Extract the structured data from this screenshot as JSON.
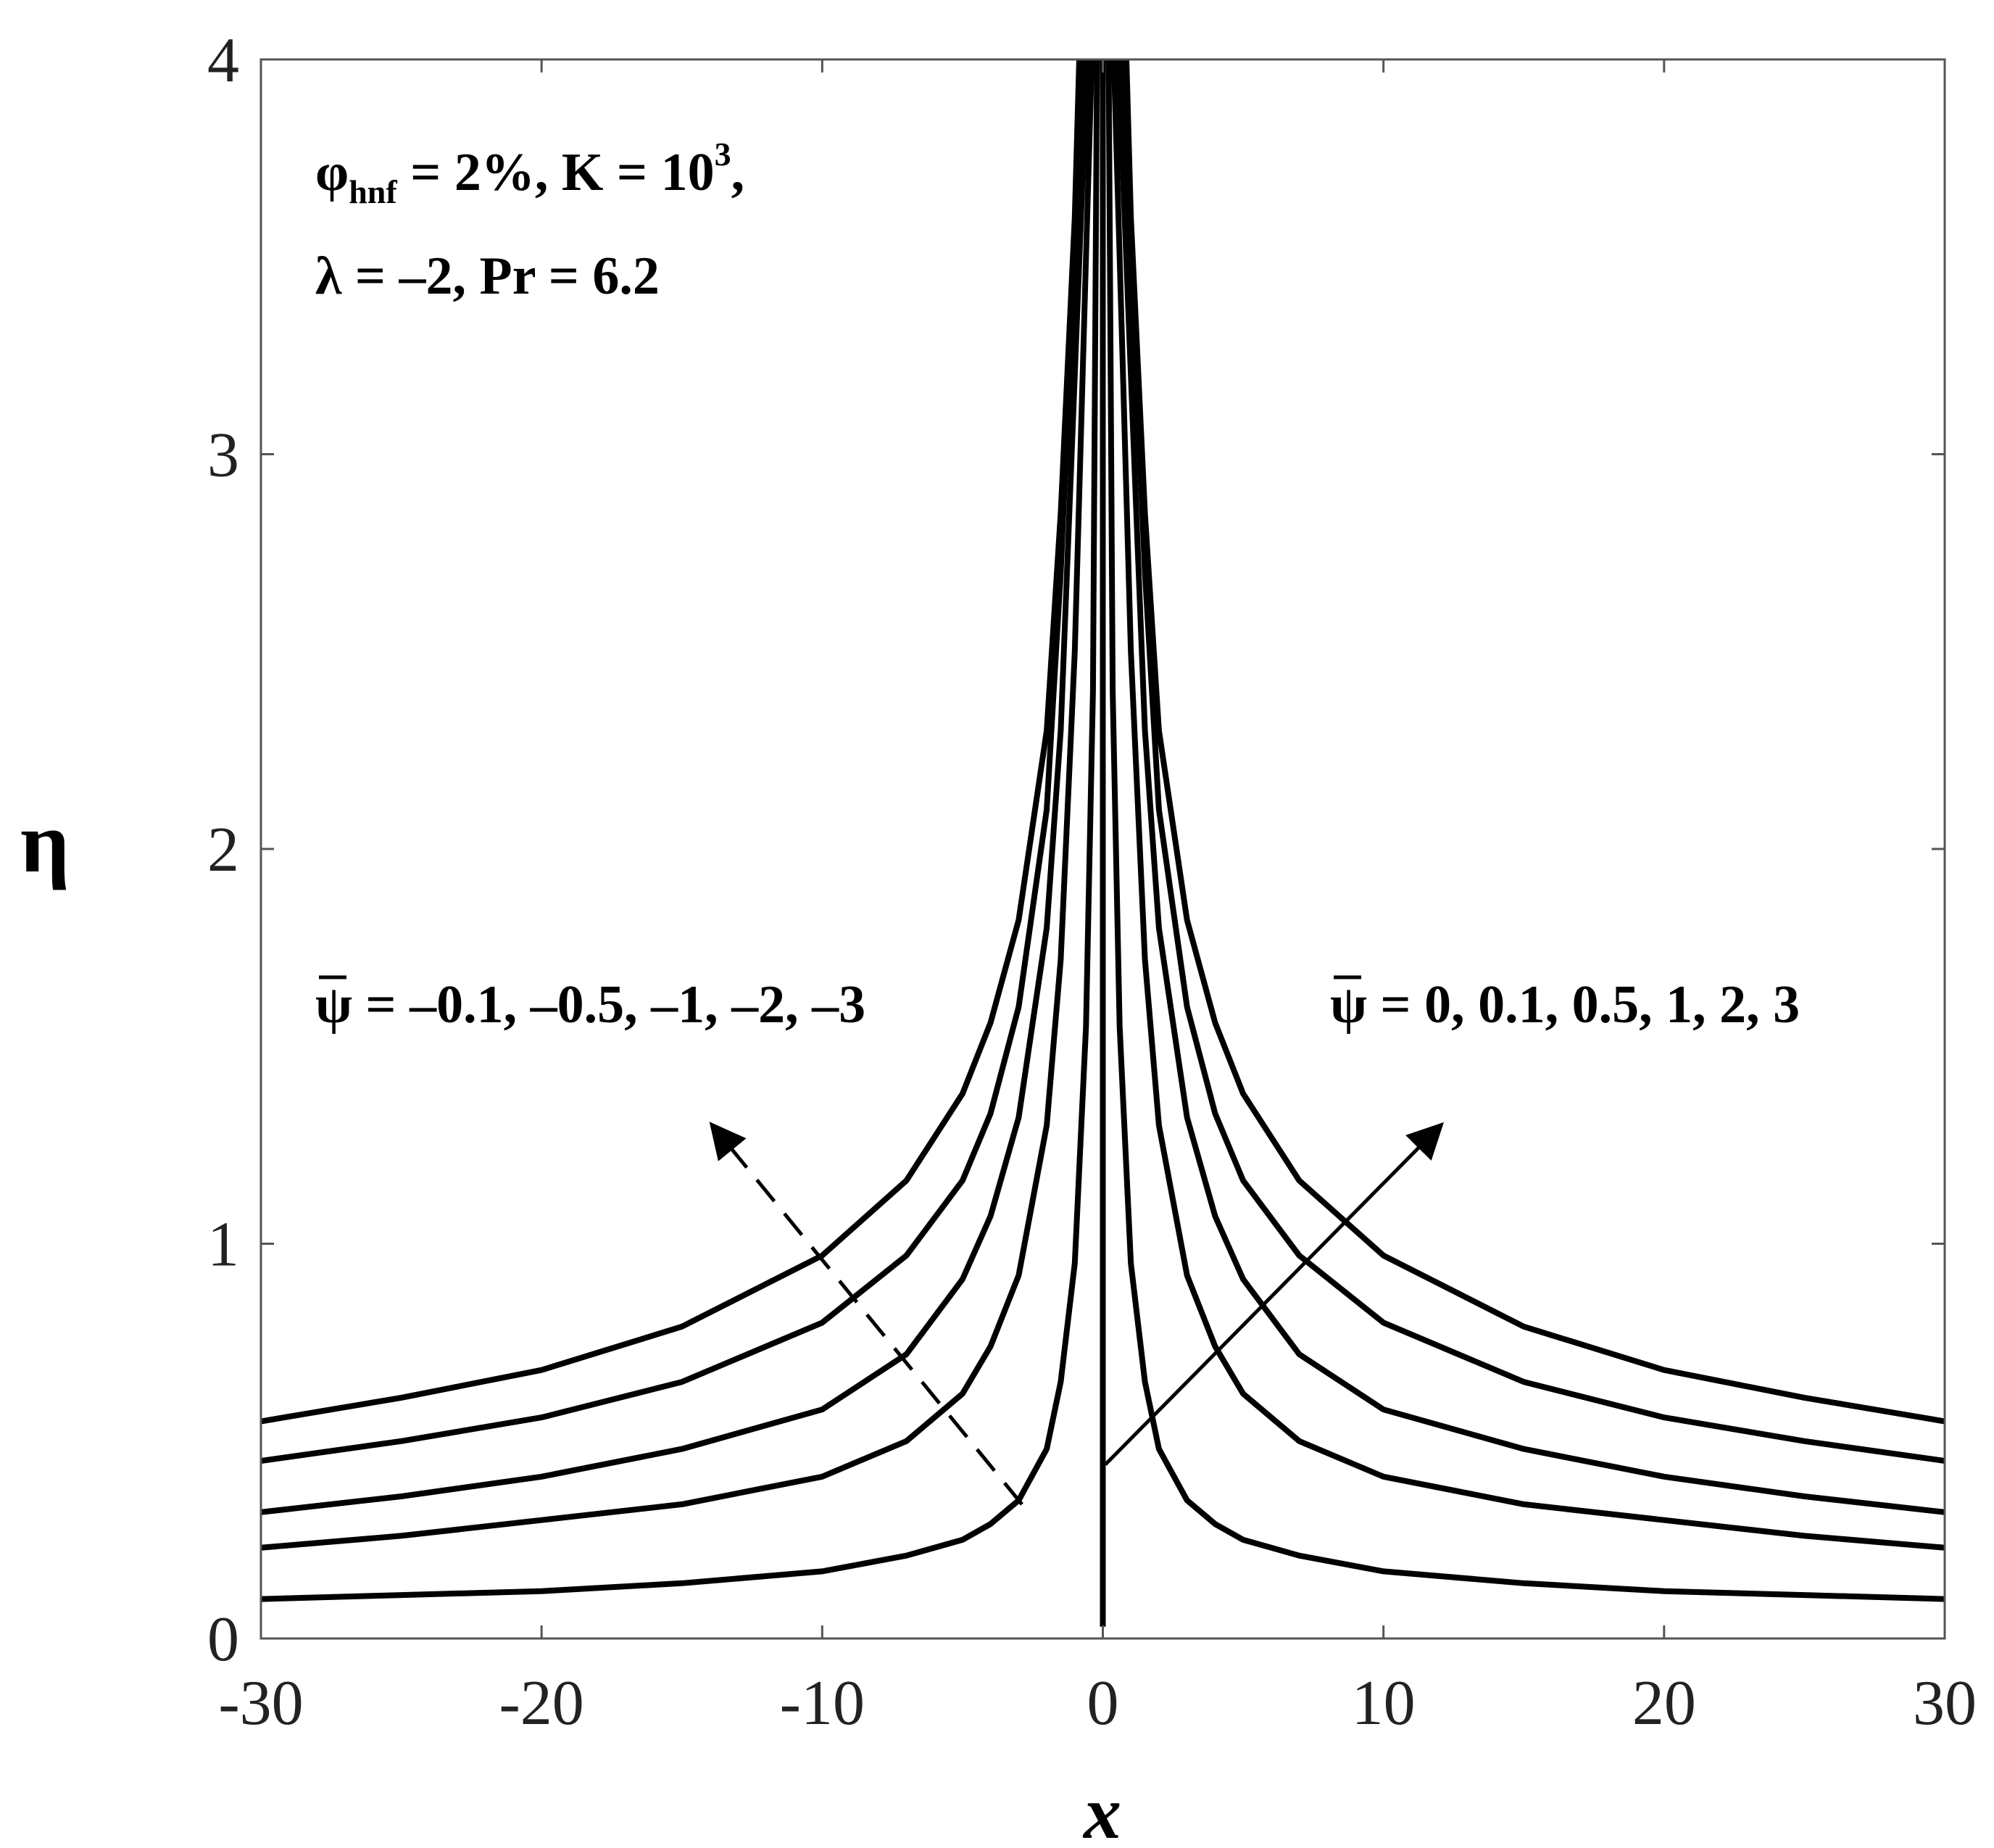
{
  "chart_data": {
    "type": "line",
    "title": "",
    "xlabel": "x",
    "ylabel": "η",
    "xlim": [
      -30,
      30
    ],
    "ylim": [
      0,
      4
    ],
    "x_ticks": [
      "-30",
      "-20",
      "-10",
      "0",
      "10",
      "20",
      "30"
    ],
    "y_ticks": [
      "0",
      "1",
      "2",
      "3",
      "4"
    ],
    "grid": false,
    "colors": {
      "line": "#000000",
      "axis": "#555555"
    },
    "annotations": {
      "param_line1_main": "φ",
      "param_line1_sub": "hnf",
      "param_line1_rest": " = 2%, K = 10",
      "param_line1_sup": "3",
      "param_line1_end": ",",
      "param_line2": "λ = –2, Pr = 6.2",
      "left_psi": "ψ",
      "left_values": " = –0.1, –0.5, –1, –2, –3",
      "right_psi": "ψ",
      "right_values": " = 0, 0.1, 0.5, 1, 2, 3"
    },
    "series": [
      {
        "eta_at_edge": 0.55,
        "eta_at_center": 4.5,
        "x": [
          -30,
          -25,
          -20,
          -15,
          -10,
          -7,
          -5,
          -4,
          -3,
          -2,
          -1.5,
          -1,
          -0.8,
          0.8,
          1,
          1.5,
          2,
          3,
          4,
          5,
          7,
          10,
          15,
          20,
          25,
          30
        ],
        "y": [
          0.55,
          0.61,
          0.68,
          0.79,
          0.97,
          1.16,
          1.38,
          1.56,
          1.82,
          2.3,
          2.85,
          3.6,
          4.1,
          4.1,
          3.6,
          2.85,
          2.3,
          1.82,
          1.56,
          1.38,
          1.16,
          0.97,
          0.79,
          0.68,
          0.61,
          0.55
        ]
      },
      {
        "eta_at_edge": 0.45,
        "eta_at_center": 4.5,
        "x": [
          -30,
          -25,
          -20,
          -15,
          -10,
          -7,
          -5,
          -4,
          -3,
          -2,
          -1.5,
          -1,
          -0.6,
          0.6,
          1,
          1.5,
          2,
          3,
          4,
          5,
          7,
          10,
          15,
          20,
          25,
          30
        ],
        "y": [
          0.45,
          0.5,
          0.56,
          0.65,
          0.8,
          0.97,
          1.16,
          1.33,
          1.6,
          2.1,
          2.7,
          3.5,
          4.1,
          4.1,
          3.5,
          2.7,
          2.1,
          1.6,
          1.33,
          1.16,
          0.97,
          0.8,
          0.65,
          0.56,
          0.5,
          0.45
        ]
      },
      {
        "eta_at_edge": 0.32,
        "eta_at_center": 4.5,
        "x": [
          -30,
          -25,
          -20,
          -15,
          -10,
          -7,
          -5,
          -4,
          -3,
          -2,
          -1.5,
          -1,
          -0.5,
          0.5,
          1,
          1.5,
          2,
          3,
          4,
          5,
          7,
          10,
          15,
          20,
          25,
          30
        ],
        "y": [
          0.32,
          0.36,
          0.41,
          0.48,
          0.58,
          0.72,
          0.91,
          1.07,
          1.32,
          1.8,
          2.3,
          3.2,
          4.1,
          4.1,
          3.2,
          2.3,
          1.8,
          1.32,
          1.07,
          0.91,
          0.72,
          0.58,
          0.48,
          0.41,
          0.36,
          0.32
        ]
      },
      {
        "eta_at_edge": 0.23,
        "eta_at_center": 4.5,
        "x": [
          -30,
          -25,
          -20,
          -15,
          -10,
          -7,
          -5,
          -4,
          -3,
          -2,
          -1.5,
          -1,
          -0.6,
          -0.35,
          0.35,
          0.6,
          1,
          1.5,
          2,
          3,
          4,
          5,
          7,
          10,
          15,
          20,
          25,
          30
        ],
        "y": [
          0.23,
          0.26,
          0.3,
          0.34,
          0.41,
          0.5,
          0.62,
          0.74,
          0.92,
          1.3,
          1.72,
          2.5,
          3.5,
          4.1,
          4.1,
          3.5,
          2.5,
          1.72,
          1.3,
          0.92,
          0.74,
          0.62,
          0.5,
          0.41,
          0.34,
          0.3,
          0.26,
          0.23
        ]
      },
      {
        "eta_at_edge": 0.1,
        "eta_at_center": 4.5,
        "x": [
          -30,
          -25,
          -20,
          -15,
          -10,
          -7,
          -5,
          -4,
          -3,
          -2,
          -1.5,
          -1,
          -0.6,
          -0.35,
          -0.2,
          0.2,
          0.35,
          0.6,
          1,
          1.5,
          2,
          3,
          4,
          5,
          7,
          10,
          15,
          20,
          25,
          30
        ],
        "y": [
          0.1,
          0.11,
          0.12,
          0.14,
          0.17,
          0.21,
          0.25,
          0.29,
          0.35,
          0.48,
          0.65,
          0.95,
          1.55,
          2.4,
          4.1,
          4.1,
          2.4,
          1.55,
          0.95,
          0.65,
          0.48,
          0.35,
          0.29,
          0.25,
          0.21,
          0.17,
          0.14,
          0.12,
          0.11,
          0.1
        ]
      },
      {
        "eta_at_edge": 0.03,
        "eta_at_center": 4.5,
        "x": [
          0,
          0
        ],
        "y": [
          0.03,
          4.1
        ]
      }
    ]
  }
}
